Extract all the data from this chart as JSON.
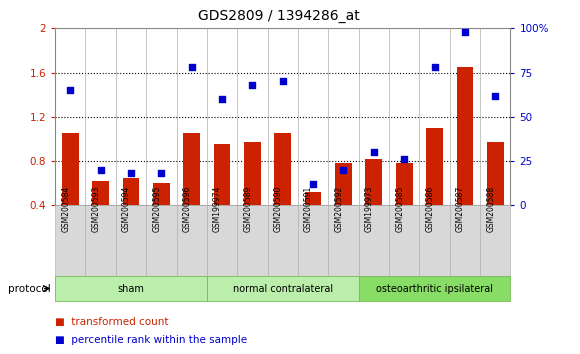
{
  "title": "GDS2809 / 1394286_at",
  "samples": [
    "GSM200584",
    "GSM200593",
    "GSM200594",
    "GSM200595",
    "GSM200596",
    "GSM199974",
    "GSM200589",
    "GSM200590",
    "GSM200591",
    "GSM200592",
    "GSM199973",
    "GSM200585",
    "GSM200586",
    "GSM200587",
    "GSM200588"
  ],
  "red_values": [
    1.05,
    0.62,
    0.65,
    0.6,
    1.05,
    0.95,
    0.97,
    1.05,
    0.52,
    0.78,
    0.82,
    0.78,
    1.1,
    1.65,
    0.97
  ],
  "blue_values": [
    65,
    20,
    18,
    18,
    78,
    60,
    68,
    70,
    12,
    20,
    30,
    26,
    78,
    98,
    62
  ],
  "groups": [
    {
      "label": "sham",
      "start": 0,
      "end": 4
    },
    {
      "label": "normal contralateral",
      "start": 5,
      "end": 9
    },
    {
      "label": "osteoarthritic ipsilateral",
      "start": 10,
      "end": 14
    }
  ],
  "ylim_left": [
    0.4,
    2.0
  ],
  "ylim_right": [
    0,
    100
  ],
  "yticks_left": [
    0.4,
    0.8,
    1.2,
    1.6,
    2.0
  ],
  "ytick_labels_left": [
    "0.4",
    "0.8",
    "1.2",
    "1.6",
    "2"
  ],
  "yticks_right": [
    0,
    25,
    50,
    75,
    100
  ],
  "ytick_labels_right": [
    "0",
    "25",
    "50",
    "75",
    "100%"
  ],
  "bar_color": "#cc2200",
  "marker_color": "#0000cc",
  "sample_bg_color": "#d8d8d8",
  "plot_bg": "#ffffff",
  "group_color_light": "#bbeeaa",
  "group_color_dark": "#88dd66",
  "protocol_label": "protocol",
  "legend_bar": "transformed count",
  "legend_marker": "percentile rank within the sample",
  "grid_yticks": [
    0.8,
    1.2,
    1.6
  ]
}
